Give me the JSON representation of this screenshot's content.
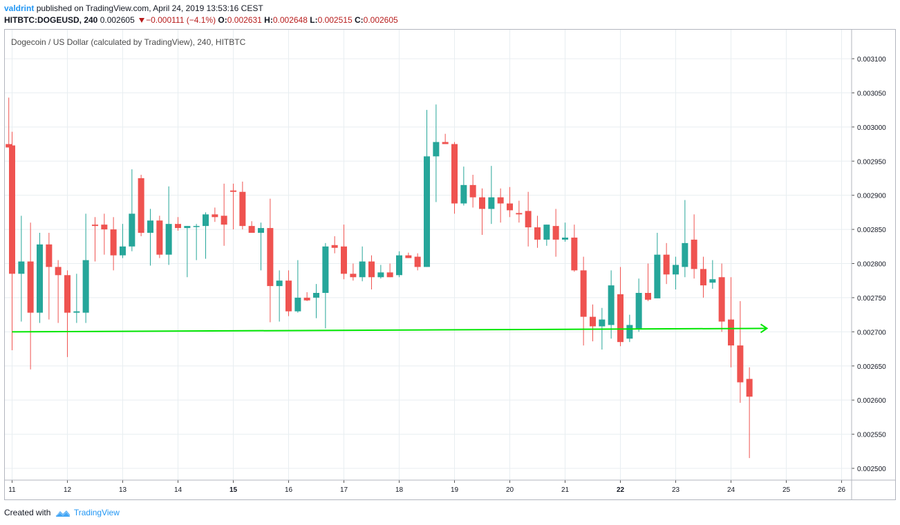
{
  "header": {
    "author": "valdrint",
    "published_text": "published on TradingView.com, April 24, 2019 13:53:16 CEST",
    "symbol_line": "HITBTC:DOGEUSD, 240",
    "last_price": "0.002605",
    "change": "−0.000111 (−4.1%)",
    "open_label": "O:",
    "open_value": "0.002631",
    "high_label": "H:",
    "high_value": "0.002648",
    "low_label": "L:",
    "low_value": "0.002515",
    "close_label": "C:",
    "close_value": "0.002605"
  },
  "footer": {
    "created_with": "Created with",
    "brand": "TradingView"
  },
  "chart_data": {
    "type": "candlestick",
    "title": "Dogecoin / US Dollar (calculated by TradingView), 240, HITBTC",
    "colors": {
      "up": "#26a69a",
      "down": "#ef5350",
      "grid": "#e8eef1",
      "annotation": "#00e600"
    },
    "x_ticks": [
      {
        "x": 11,
        "label": "11",
        "bold": false
      },
      {
        "x": 12,
        "label": "12",
        "bold": false
      },
      {
        "x": 13,
        "label": "13",
        "bold": false
      },
      {
        "x": 14,
        "label": "14",
        "bold": false
      },
      {
        "x": 15,
        "label": "15",
        "bold": true
      },
      {
        "x": 16,
        "label": "16",
        "bold": false
      },
      {
        "x": 17,
        "label": "17",
        "bold": false
      },
      {
        "x": 18,
        "label": "18",
        "bold": false
      },
      {
        "x": 19,
        "label": "19",
        "bold": false
      },
      {
        "x": 20,
        "label": "20",
        "bold": false
      },
      {
        "x": 21,
        "label": "21",
        "bold": false
      },
      {
        "x": 22,
        "label": "22",
        "bold": true
      },
      {
        "x": 23,
        "label": "23",
        "bold": false
      },
      {
        "x": 24,
        "label": "24",
        "bold": false
      },
      {
        "x": 25,
        "label": "25",
        "bold": false
      },
      {
        "x": 26,
        "label": "26",
        "bold": false
      }
    ],
    "y_ticks": [
      "0.003100",
      "0.003050",
      "0.003000",
      "0.002950",
      "0.002900",
      "0.002850",
      "0.002800",
      "0.002750",
      "0.002700",
      "0.002650",
      "0.002600",
      "0.002550",
      "0.002500"
    ],
    "ylim": [
      0.002475,
      0.003125
    ],
    "xlim": [
      10.93,
      26.05
    ],
    "candles": [
      {
        "t": 11.0,
        "o": 0.002973,
        "h": 0.002993,
        "l": 0.002673,
        "c": 0.002785
      },
      {
        "t": 11.167,
        "o": 0.002785,
        "h": 0.00287,
        "l": 0.002715,
        "c": 0.002803
      },
      {
        "t": 11.333,
        "o": 0.002803,
        "h": 0.00286,
        "l": 0.002645,
        "c": 0.002728
      },
      {
        "t": 11.5,
        "o": 0.002728,
        "h": 0.002845,
        "l": 0.002713,
        "c": 0.002828
      },
      {
        "t": 11.667,
        "o": 0.002828,
        "h": 0.002845,
        "l": 0.002718,
        "c": 0.002795
      },
      {
        "t": 11.833,
        "o": 0.002795,
        "h": 0.002805,
        "l": 0.002713,
        "c": 0.002783
      },
      {
        "t": 12.0,
        "o": 0.002783,
        "h": 0.00279,
        "l": 0.002663,
        "c": 0.002728
      },
      {
        "t": 12.167,
        "o": 0.002728,
        "h": 0.002785,
        "l": 0.002713,
        "c": 0.00273
      },
      {
        "t": 12.333,
        "o": 0.002728,
        "h": 0.002873,
        "l": 0.002713,
        "c": 0.002805
      },
      {
        "t": 12.5,
        "o": 0.002857,
        "h": 0.002868,
        "l": 0.002803,
        "c": 0.002855
      },
      {
        "t": 12.667,
        "o": 0.002857,
        "h": 0.002873,
        "l": 0.002813,
        "c": 0.00285
      },
      {
        "t": 12.833,
        "o": 0.00285,
        "h": 0.002868,
        "l": 0.00279,
        "c": 0.002812
      },
      {
        "t": 13.0,
        "o": 0.002812,
        "h": 0.002858,
        "l": 0.002808,
        "c": 0.002825
      },
      {
        "t": 13.167,
        "o": 0.002825,
        "h": 0.002938,
        "l": 0.002818,
        "c": 0.002873
      },
      {
        "t": 13.333,
        "o": 0.002925,
        "h": 0.00293,
        "l": 0.00284,
        "c": 0.002845
      },
      {
        "t": 13.5,
        "o": 0.002845,
        "h": 0.00288,
        "l": 0.002797,
        "c": 0.002863
      },
      {
        "t": 13.667,
        "o": 0.002863,
        "h": 0.00287,
        "l": 0.002808,
        "c": 0.002813
      },
      {
        "t": 13.833,
        "o": 0.002813,
        "h": 0.002913,
        "l": 0.002798,
        "c": 0.002858
      },
      {
        "t": 14.0,
        "o": 0.002858,
        "h": 0.002868,
        "l": 0.002848,
        "c": 0.002852
      },
      {
        "t": 14.167,
        "o": 0.002852,
        "h": 0.002855,
        "l": 0.00278,
        "c": 0.002855
      },
      {
        "t": 14.333,
        "o": 0.002855,
        "h": 0.002858,
        "l": 0.002805,
        "c": 0.002855
      },
      {
        "t": 14.5,
        "o": 0.002855,
        "h": 0.002875,
        "l": 0.002807,
        "c": 0.002872
      },
      {
        "t": 14.667,
        "o": 0.002872,
        "h": 0.002882,
        "l": 0.002861,
        "c": 0.002868
      },
      {
        "t": 14.833,
        "o": 0.00287,
        "h": 0.002917,
        "l": 0.002826,
        "c": 0.002857
      },
      {
        "t": 15.0,
        "o": 0.002907,
        "h": 0.002917,
        "l": 0.00285,
        "c": 0.002905
      },
      {
        "t": 15.167,
        "o": 0.002905,
        "h": 0.00292,
        "l": 0.00285,
        "c": 0.002855
      },
      {
        "t": 15.333,
        "o": 0.002855,
        "h": 0.002862,
        "l": 0.002845,
        "c": 0.002845
      },
      {
        "t": 15.5,
        "o": 0.002845,
        "h": 0.00286,
        "l": 0.00279,
        "c": 0.002852
      },
      {
        "t": 15.667,
        "o": 0.002852,
        "h": 0.002895,
        "l": 0.002714,
        "c": 0.002767
      },
      {
        "t": 15.833,
        "o": 0.002767,
        "h": 0.00279,
        "l": 0.002715,
        "c": 0.002775
      },
      {
        "t": 16.0,
        "o": 0.002775,
        "h": 0.00279,
        "l": 0.002723,
        "c": 0.00273
      },
      {
        "t": 16.167,
        "o": 0.00273,
        "h": 0.002805,
        "l": 0.002728,
        "c": 0.00275
      },
      {
        "t": 16.333,
        "o": 0.00275,
        "h": 0.002758,
        "l": 0.002745,
        "c": 0.002746
      },
      {
        "t": 16.5,
        "o": 0.00275,
        "h": 0.00277,
        "l": 0.00272,
        "c": 0.002757
      },
      {
        "t": 16.667,
        "o": 0.002757,
        "h": 0.00283,
        "l": 0.002705,
        "c": 0.002825
      },
      {
        "t": 16.833,
        "o": 0.002827,
        "h": 0.00284,
        "l": 0.002815,
        "c": 0.002823
      },
      {
        "t": 17.0,
        "o": 0.002825,
        "h": 0.002857,
        "l": 0.002777,
        "c": 0.002785
      },
      {
        "t": 17.167,
        "o": 0.002785,
        "h": 0.0028,
        "l": 0.002775,
        "c": 0.00278
      },
      {
        "t": 17.333,
        "o": 0.00278,
        "h": 0.002825,
        "l": 0.002774,
        "c": 0.002803
      },
      {
        "t": 17.5,
        "o": 0.002803,
        "h": 0.002812,
        "l": 0.002762,
        "c": 0.00278
      },
      {
        "t": 17.667,
        "o": 0.00278,
        "h": 0.002798,
        "l": 0.002778,
        "c": 0.002787
      },
      {
        "t": 17.833,
        "o": 0.002787,
        "h": 0.0028,
        "l": 0.00278,
        "c": 0.00278
      },
      {
        "t": 18.0,
        "o": 0.002783,
        "h": 0.002818,
        "l": 0.00278,
        "c": 0.002812
      },
      {
        "t": 18.167,
        "o": 0.002812,
        "h": 0.002816,
        "l": 0.002808,
        "c": 0.002808
      },
      {
        "t": 18.333,
        "o": 0.00281,
        "h": 0.002815,
        "l": 0.00279,
        "c": 0.002795
      },
      {
        "t": 18.5,
        "o": 0.002795,
        "h": 0.003025,
        "l": 0.002795,
        "c": 0.002957
      },
      {
        "t": 18.667,
        "o": 0.002957,
        "h": 0.003033,
        "l": 0.00289,
        "c": 0.002978
      },
      {
        "t": 18.833,
        "o": 0.002978,
        "h": 0.00299,
        "l": 0.002975,
        "c": 0.002975
      },
      {
        "t": 19.0,
        "o": 0.002975,
        "h": 0.002978,
        "l": 0.002873,
        "c": 0.002888
      },
      {
        "t": 19.167,
        "o": 0.002888,
        "h": 0.002942,
        "l": 0.002885,
        "c": 0.002915
      },
      {
        "t": 19.333,
        "o": 0.002915,
        "h": 0.00293,
        "l": 0.002882,
        "c": 0.002897
      },
      {
        "t": 19.5,
        "o": 0.002897,
        "h": 0.00291,
        "l": 0.002842,
        "c": 0.00288
      },
      {
        "t": 19.667,
        "o": 0.00288,
        "h": 0.002943,
        "l": 0.002858,
        "c": 0.002897
      },
      {
        "t": 19.833,
        "o": 0.002897,
        "h": 0.00291,
        "l": 0.00286,
        "c": 0.002888
      },
      {
        "t": 20.0,
        "o": 0.002888,
        "h": 0.002912,
        "l": 0.002868,
        "c": 0.002878
      },
      {
        "t": 20.167,
        "o": 0.002874,
        "h": 0.002892,
        "l": 0.00286,
        "c": 0.002872
      },
      {
        "t": 20.333,
        "o": 0.002877,
        "h": 0.002905,
        "l": 0.002825,
        "c": 0.002853
      },
      {
        "t": 20.5,
        "o": 0.002853,
        "h": 0.00287,
        "l": 0.002823,
        "c": 0.002835
      },
      {
        "t": 20.667,
        "o": 0.002835,
        "h": 0.002857,
        "l": 0.002826,
        "c": 0.002857
      },
      {
        "t": 20.833,
        "o": 0.002855,
        "h": 0.00288,
        "l": 0.00281,
        "c": 0.002835
      },
      {
        "t": 21.0,
        "o": 0.002835,
        "h": 0.00286,
        "l": 0.002832,
        "c": 0.002838
      },
      {
        "t": 21.167,
        "o": 0.002838,
        "h": 0.002857,
        "l": 0.002788,
        "c": 0.00279
      },
      {
        "t": 21.333,
        "o": 0.00279,
        "h": 0.00281,
        "l": 0.00268,
        "c": 0.002722
      },
      {
        "t": 21.5,
        "o": 0.002722,
        "h": 0.00274,
        "l": 0.002686,
        "c": 0.002708
      },
      {
        "t": 21.667,
        "o": 0.002708,
        "h": 0.002735,
        "l": 0.002674,
        "c": 0.002718
      },
      {
        "t": 21.833,
        "o": 0.00271,
        "h": 0.00279,
        "l": 0.00269,
        "c": 0.002768
      },
      {
        "t": 22.0,
        "o": 0.002755,
        "h": 0.002795,
        "l": 0.002679,
        "c": 0.002685
      },
      {
        "t": 22.167,
        "o": 0.00269,
        "h": 0.002725,
        "l": 0.002685,
        "c": 0.00271
      },
      {
        "t": 22.333,
        "o": 0.002705,
        "h": 0.002778,
        "l": 0.0027,
        "c": 0.002757
      },
      {
        "t": 22.5,
        "o": 0.002757,
        "h": 0.0028,
        "l": 0.002745,
        "c": 0.002747
      },
      {
        "t": 22.667,
        "o": 0.002749,
        "h": 0.002845,
        "l": 0.002749,
        "c": 0.002813
      },
      {
        "t": 22.833,
        "o": 0.002813,
        "h": 0.00283,
        "l": 0.00277,
        "c": 0.002784
      },
      {
        "t": 23.0,
        "o": 0.002784,
        "h": 0.00281,
        "l": 0.002762,
        "c": 0.002798
      },
      {
        "t": 23.167,
        "o": 0.002795,
        "h": 0.002893,
        "l": 0.00278,
        "c": 0.00283
      },
      {
        "t": 23.333,
        "o": 0.002835,
        "h": 0.002872,
        "l": 0.002778,
        "c": 0.002792
      },
      {
        "t": 23.5,
        "o": 0.002792,
        "h": 0.00281,
        "l": 0.00275,
        "c": 0.002768
      },
      {
        "t": 23.667,
        "o": 0.002772,
        "h": 0.002805,
        "l": 0.002763,
        "c": 0.002777
      },
      {
        "t": 23.833,
        "o": 0.00278,
        "h": 0.0028,
        "l": 0.0027,
        "c": 0.002715
      },
      {
        "t": 24.0,
        "o": 0.002718,
        "h": 0.00278,
        "l": 0.002648,
        "c": 0.00268
      },
      {
        "t": 24.167,
        "o": 0.00268,
        "h": 0.002745,
        "l": 0.002596,
        "c": 0.002626
      },
      {
        "t": 24.333,
        "o": 0.002631,
        "h": 0.002648,
        "l": 0.002515,
        "c": 0.002605
      }
    ],
    "partial_left_candle": {
      "o": 0.002975,
      "h": 0.003043,
      "l": 0.00297,
      "c": 0.00297
    },
    "annotation_line": {
      "x1": 11.0,
      "y1": 0.0027,
      "x2": 24.65,
      "y2": 0.002705,
      "arrow": true
    }
  }
}
